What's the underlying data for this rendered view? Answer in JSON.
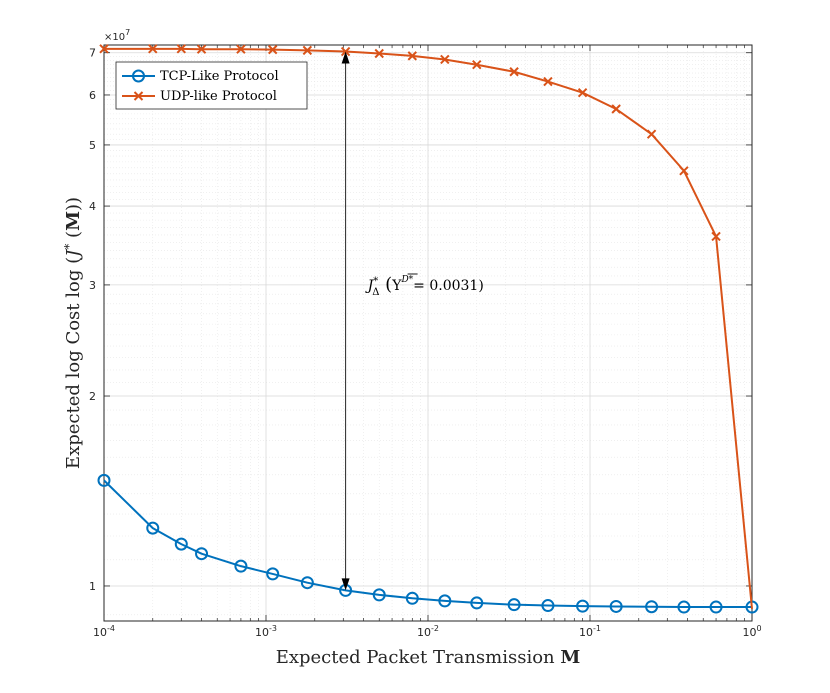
{
  "chart_data": {
    "type": "line",
    "title": "",
    "xlabel": "Expected Packet Transmission M",
    "ylabel": "Expected log Cost log (J* (M))",
    "xscale": "log",
    "yscale": "log",
    "xlim": [
      0.0001,
      1
    ],
    "ylim": [
      0.88,
      7.2
    ],
    "y_multiplier": "×10^7",
    "grid": true,
    "minor_grid": true,
    "legend_position": "top-left",
    "x_ticks": [
      0.0001,
      0.001,
      0.01,
      0.1,
      1
    ],
    "x_tick_labels": [
      {
        "base": "10",
        "exp": "-4"
      },
      {
        "base": "10",
        "exp": "-3"
      },
      {
        "base": "10",
        "exp": "-2"
      },
      {
        "base": "10",
        "exp": "-1"
      },
      {
        "base": "10",
        "exp": "0"
      }
    ],
    "y_ticks": [
      1,
      2,
      3,
      4,
      5,
      6,
      7
    ],
    "y_tick_labels": [
      "1",
      "2",
      "3",
      "4",
      "5",
      "6",
      "7"
    ],
    "series": [
      {
        "name": "TCP-Like Protocol",
        "color": "#0072BD",
        "marker": "circle",
        "x": [
          0.0001,
          0.0002,
          0.0003,
          0.0004,
          0.0007,
          0.0011,
          0.0018,
          0.0031,
          0.005,
          0.008,
          0.0127,
          0.02,
          0.034,
          0.055,
          0.09,
          0.145,
          0.24,
          0.38,
          0.6,
          1
        ],
        "y": [
          1.47,
          1.235,
          1.165,
          1.125,
          1.075,
          1.045,
          1.012,
          0.984,
          0.968,
          0.956,
          0.947,
          0.94,
          0.934,
          0.931,
          0.929,
          0.928,
          0.927,
          0.926,
          0.926,
          0.926
        ]
      },
      {
        "name": "UDP-like Protocol",
        "color": "#D95319",
        "marker": "x",
        "x": [
          0.0001,
          0.0002,
          0.0003,
          0.0004,
          0.0007,
          0.0011,
          0.0018,
          0.0031,
          0.005,
          0.008,
          0.0127,
          0.02,
          0.034,
          0.055,
          0.09,
          0.145,
          0.24,
          0.38,
          0.6,
          1
        ],
        "y": [
          7.1,
          7.1,
          7.1,
          7.09,
          7.09,
          7.08,
          7.06,
          7.03,
          6.98,
          6.92,
          6.83,
          6.7,
          6.53,
          6.3,
          6.05,
          5.7,
          5.2,
          4.55,
          3.58,
          0.92
        ]
      }
    ],
    "annotations": [
      {
        "type": "double-arrow",
        "x": 0.0031,
        "y_start": 7.03,
        "y_end": 0.984,
        "label_main": "J",
        "label_sup": "*",
        "label_sub": "Δ",
        "label_inner": "Υ",
        "label_inner_sup": "D*",
        "label_value": "= 0.0031)"
      }
    ]
  }
}
